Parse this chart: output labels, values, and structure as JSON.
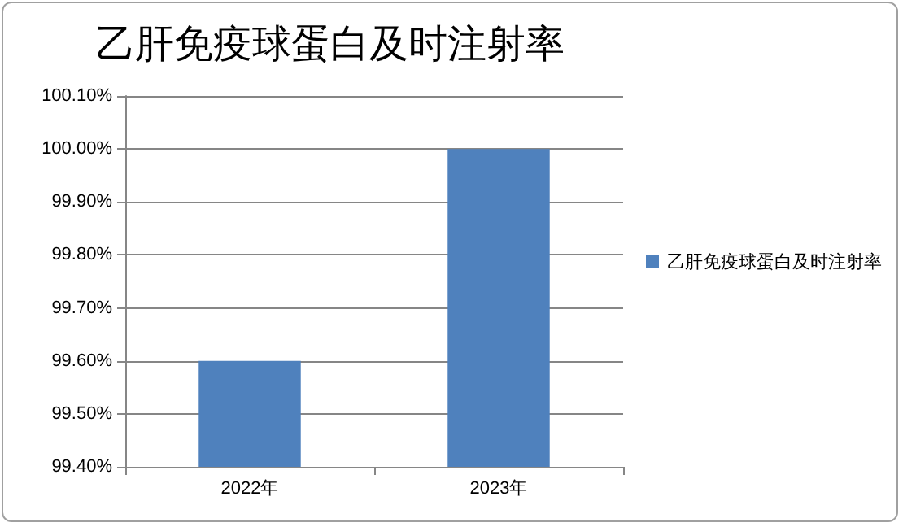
{
  "chart_data": {
    "type": "bar",
    "title": "乙肝免疫球蛋白及时注射率",
    "categories": [
      "2022年",
      "2023年"
    ],
    "series": [
      {
        "name": "乙肝免疫球蛋白及时注射率",
        "color": "#4f81bd",
        "values": [
          99.6,
          100.0
        ]
      }
    ],
    "ylim": [
      99.4,
      100.1
    ],
    "yticks": [
      {
        "value": 99.4,
        "label": "99.40%"
      },
      {
        "value": 99.5,
        "label": "99.50%"
      },
      {
        "value": 99.6,
        "label": "99.60%"
      },
      {
        "value": 99.7,
        "label": "99.70%"
      },
      {
        "value": 99.8,
        "label": "99.80%"
      },
      {
        "value": 99.9,
        "label": "99.90%"
      },
      {
        "value": 100.0,
        "label": "100.00%"
      },
      {
        "value": 100.1,
        "label": "100.10%"
      }
    ],
    "grid": "y",
    "legend": "right"
  }
}
